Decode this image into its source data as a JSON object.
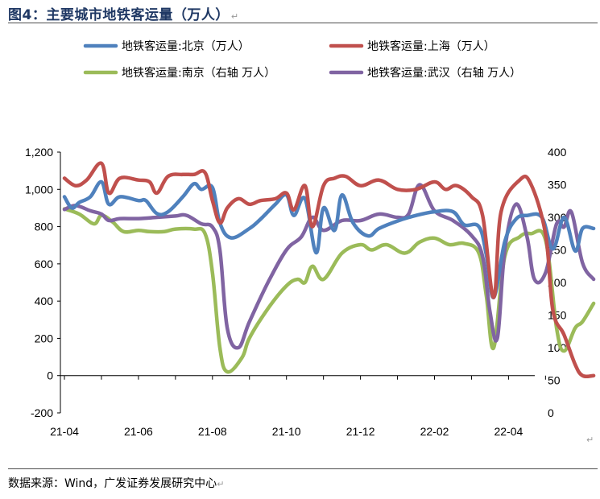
{
  "title": "图4：主要城市地铁客运量（万人）",
  "source": "数据来源：Wind，广发证券发展研究中心",
  "chart_data": {
    "type": "line",
    "title": "主要城市地铁客运量（万人）",
    "x_ticks": [
      "21-04",
      "21-06",
      "21-08",
      "21-10",
      "21-12",
      "22-02",
      "22-04"
    ],
    "left_axis": {
      "ticks": [
        "-200",
        "0",
        "200",
        "400",
        "600",
        "800",
        "1,000",
        "1,200"
      ],
      "range": [
        -200,
        1200
      ]
    },
    "right_axis": {
      "ticks": [
        "0",
        "50",
        "100",
        "150",
        "200",
        "250",
        "300",
        "350",
        "400"
      ],
      "range": [
        0,
        400
      ]
    },
    "grid": false,
    "legend_position": "top",
    "series": [
      {
        "name": "地铁客运量:北京（万人）",
        "axis": "left",
        "color": "#4f81bd",
        "points": [
          [
            0,
            960
          ],
          [
            0.2,
            900
          ],
          [
            0.4,
            930
          ],
          [
            0.7,
            960
          ],
          [
            1,
            1040
          ],
          [
            1.2,
            920
          ],
          [
            1.5,
            960
          ],
          [
            2,
            940
          ],
          [
            2.2,
            940
          ],
          [
            2.5,
            870
          ],
          [
            2.8,
            880
          ],
          [
            3.2,
            960
          ],
          [
            3.5,
            1030
          ],
          [
            3.7,
            1000
          ],
          [
            4,
            1010
          ],
          [
            4.2,
            820
          ],
          [
            4.5,
            740
          ],
          [
            5,
            790
          ],
          [
            5.3,
            840
          ],
          [
            5.7,
            920
          ],
          [
            6,
            970
          ],
          [
            6.2,
            860
          ],
          [
            6.5,
            950
          ],
          [
            6.8,
            660
          ],
          [
            7,
            900
          ],
          [
            7.3,
            780
          ],
          [
            7.5,
            970
          ],
          [
            7.8,
            820
          ],
          [
            8.2,
            750
          ],
          [
            8.5,
            790
          ],
          [
            9,
            830
          ],
          [
            9.5,
            860
          ],
          [
            10,
            880
          ],
          [
            10.5,
            880
          ],
          [
            10.8,
            810
          ],
          [
            11.2,
            800
          ],
          [
            11.4,
            650
          ],
          [
            11.6,
            420
          ],
          [
            11.9,
            720
          ],
          [
            12.2,
            840
          ],
          [
            12.5,
            860
          ],
          [
            12.9,
            850
          ],
          [
            13.2,
            680
          ],
          [
            13.5,
            850
          ],
          [
            13.8,
            670
          ],
          [
            14,
            790
          ],
          [
            14.3,
            790
          ]
        ]
      },
      {
        "name": "地铁客运量:上海（万人）",
        "axis": "left",
        "color": "#c0504d",
        "points": [
          [
            0,
            1060
          ],
          [
            0.3,
            1020
          ],
          [
            0.6,
            1050
          ],
          [
            1,
            1140
          ],
          [
            1.2,
            980
          ],
          [
            1.5,
            1060
          ],
          [
            2,
            1050
          ],
          [
            2.3,
            1040
          ],
          [
            2.5,
            980
          ],
          [
            2.8,
            1070
          ],
          [
            3.2,
            1080
          ],
          [
            3.5,
            1080
          ],
          [
            3.8,
            1090
          ],
          [
            4,
            940
          ],
          [
            4.2,
            820
          ],
          [
            4.4,
            900
          ],
          [
            4.7,
            950
          ],
          [
            5,
            920
          ],
          [
            5.3,
            940
          ],
          [
            5.7,
            950
          ],
          [
            6,
            980
          ],
          [
            6.2,
            890
          ],
          [
            6.5,
            1020
          ],
          [
            6.7,
            800
          ],
          [
            7,
            1020
          ],
          [
            7.3,
            1060
          ],
          [
            7.6,
            1070
          ],
          [
            8,
            1020
          ],
          [
            8.5,
            1050
          ],
          [
            9,
            1000
          ],
          [
            9.5,
            1000
          ],
          [
            10,
            1040
          ],
          [
            10.3,
            1000
          ],
          [
            10.6,
            1020
          ],
          [
            11,
            960
          ],
          [
            11.3,
            860
          ],
          [
            11.6,
            420
          ],
          [
            11.8,
            880
          ],
          [
            12.3,
            1050
          ],
          [
            12.6,
            1030
          ],
          [
            13,
            760
          ],
          [
            13.2,
            350
          ],
          [
            13.5,
            220
          ],
          [
            13.8,
            60
          ],
          [
            14,
            0
          ],
          [
            14.3,
            0
          ]
        ]
      },
      {
        "name": "地铁客运量:南京（右轴 万人）",
        "axis": "right",
        "color": "#9bbb59",
        "points": [
          [
            0,
            313
          ],
          [
            0.4,
            305
          ],
          [
            0.8,
            290
          ],
          [
            1,
            303
          ],
          [
            1.3,
            293
          ],
          [
            1.6,
            278
          ],
          [
            2,
            280
          ],
          [
            2.3,
            278
          ],
          [
            2.7,
            278
          ],
          [
            3,
            282
          ],
          [
            3.5,
            282
          ],
          [
            3.8,
            275
          ],
          [
            4,
            215
          ],
          [
            4.2,
            100
          ],
          [
            4.4,
            63
          ],
          [
            4.8,
            85
          ],
          [
            5,
            115
          ],
          [
            5.5,
            160
          ],
          [
            6,
            195
          ],
          [
            6.3,
            205
          ],
          [
            6.5,
            200
          ],
          [
            6.7,
            225
          ],
          [
            7,
            205
          ],
          [
            7.5,
            245
          ],
          [
            8,
            258
          ],
          [
            8.3,
            250
          ],
          [
            8.7,
            258
          ],
          [
            9.2,
            245
          ],
          [
            9.6,
            262
          ],
          [
            10,
            268
          ],
          [
            10.4,
            258
          ],
          [
            10.8,
            260
          ],
          [
            11.2,
            245
          ],
          [
            11.4,
            180
          ],
          [
            11.6,
            100
          ],
          [
            11.9,
            240
          ],
          [
            12.3,
            270
          ],
          [
            12.6,
            275
          ],
          [
            13,
            265
          ],
          [
            13.3,
            130
          ],
          [
            13.5,
            95
          ],
          [
            13.8,
            130
          ],
          [
            14,
            140
          ],
          [
            14.3,
            168
          ]
        ]
      },
      {
        "name": "地铁客运量:武汉（右轴 万人）",
        "axis": "right",
        "color": "#8064a2",
        "points": [
          [
            0,
            312
          ],
          [
            0.3,
            318
          ],
          [
            0.7,
            310
          ],
          [
            1,
            305
          ],
          [
            1.2,
            295
          ],
          [
            1.5,
            298
          ],
          [
            2,
            298
          ],
          [
            2.5,
            300
          ],
          [
            3,
            302
          ],
          [
            3.3,
            303
          ],
          [
            3.7,
            290
          ],
          [
            4,
            285
          ],
          [
            4.2,
            250
          ],
          [
            4.4,
            130
          ],
          [
            4.7,
            100
          ],
          [
            5,
            140
          ],
          [
            5.5,
            200
          ],
          [
            6,
            250
          ],
          [
            6.4,
            270
          ],
          [
            6.7,
            300
          ],
          [
            7,
            280
          ],
          [
            7.5,
            295
          ],
          [
            8,
            295
          ],
          [
            8.5,
            305
          ],
          [
            9,
            300
          ],
          [
            9.3,
            305
          ],
          [
            9.6,
            350
          ],
          [
            10,
            310
          ],
          [
            10.5,
            295
          ],
          [
            11,
            272
          ],
          [
            11.3,
            240
          ],
          [
            11.5,
            155
          ],
          [
            11.7,
            115
          ],
          [
            11.9,
            250
          ],
          [
            12.2,
            320
          ],
          [
            12.5,
            270
          ],
          [
            12.7,
            205
          ],
          [
            13,
            215
          ],
          [
            13.3,
            290
          ],
          [
            13.5,
            285
          ],
          [
            13.7,
            308
          ],
          [
            14,
            230
          ],
          [
            14.3,
            205
          ]
        ]
      }
    ]
  }
}
